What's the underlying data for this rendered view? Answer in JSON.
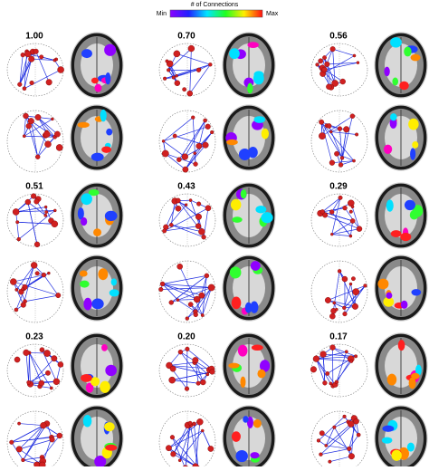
{
  "colorbar": {
    "title": "# of Connections",
    "min_label": "Min",
    "max_label": "Max"
  },
  "panels": [
    {
      "label": "1.00"
    },
    {
      "label": "0.70"
    },
    {
      "label": "0.56"
    },
    {
      "label": "0.51"
    },
    {
      "label": "0.43"
    },
    {
      "label": "0.29"
    },
    {
      "label": "0.23"
    },
    {
      "label": "0.20"
    },
    {
      "label": "0.17"
    }
  ]
}
